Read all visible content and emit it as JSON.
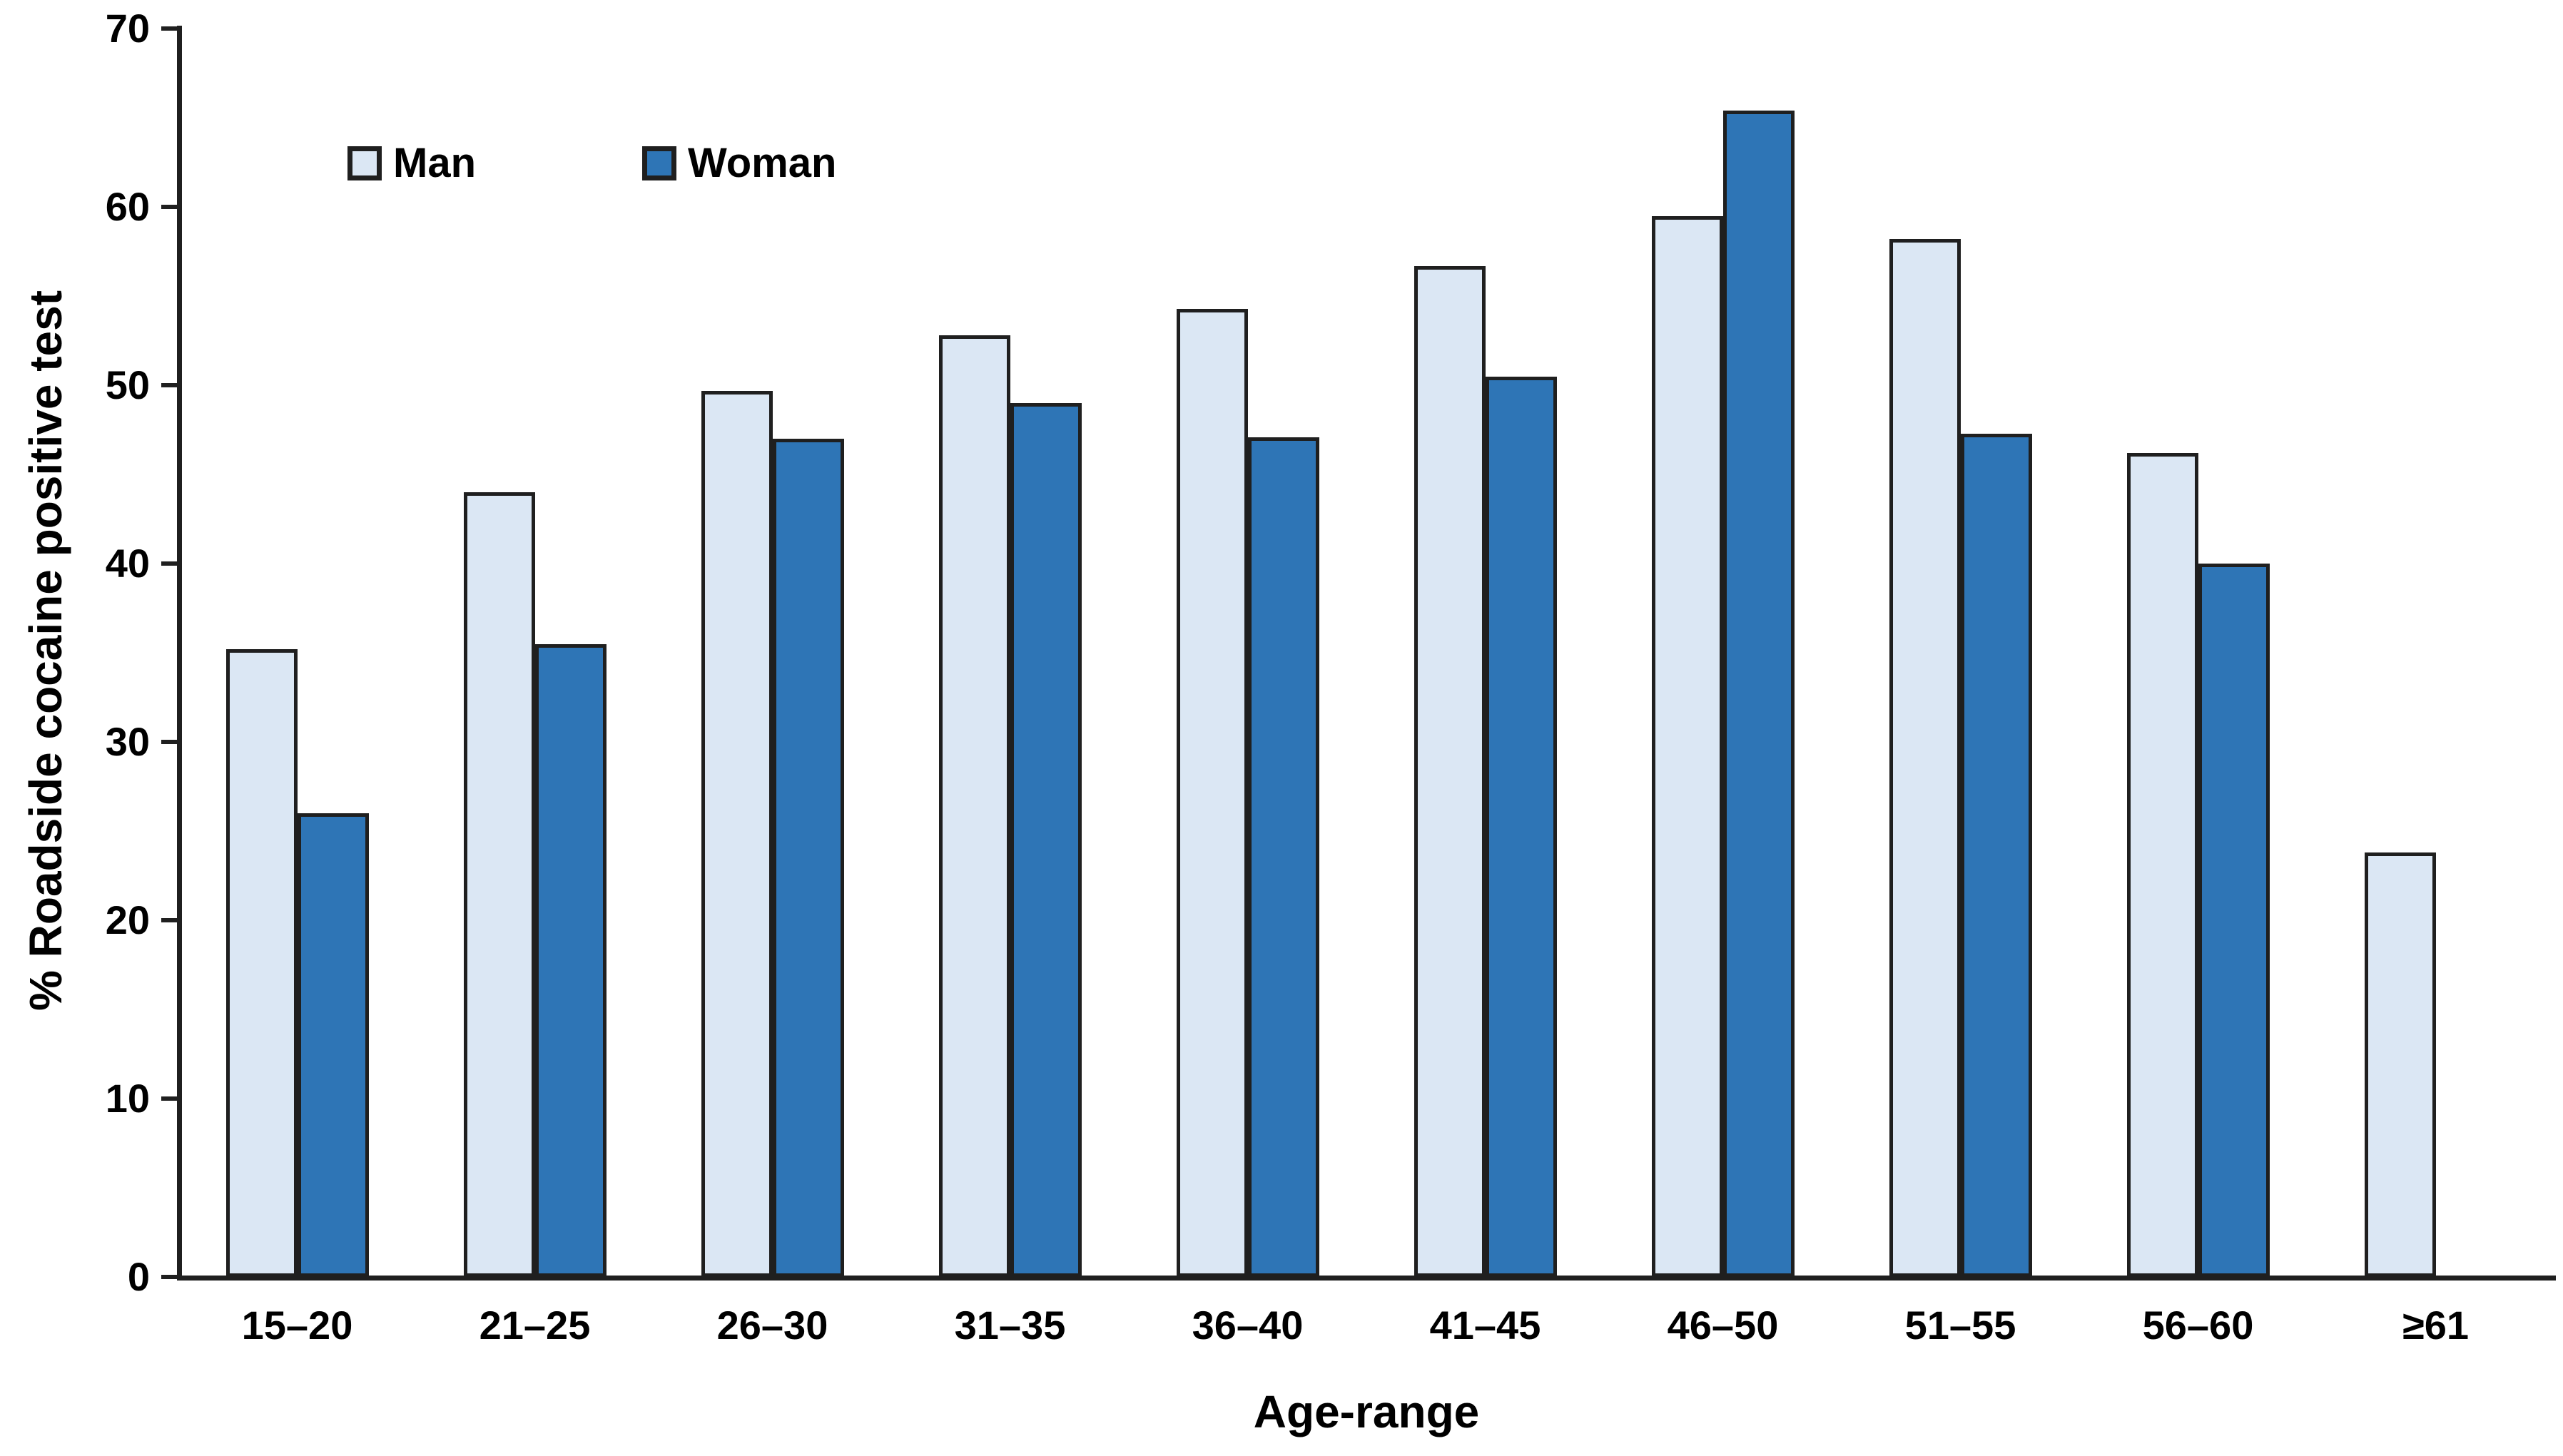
{
  "chart_data": {
    "type": "bar",
    "title": "",
    "xlabel": "Age-range",
    "ylabel": "% Roadside cocaine positive test",
    "categories": [
      "15–20",
      "21–25",
      "26–30",
      "31–35",
      "36–40",
      "41–45",
      "46–50",
      "51–55",
      "56–60",
      "≥61"
    ],
    "series": [
      {
        "name": "Man",
        "color": "#dbe7f4",
        "values": [
          35.2,
          44.0,
          49.7,
          52.8,
          54.3,
          56.7,
          59.5,
          58.2,
          46.2,
          23.8
        ]
      },
      {
        "name": "Woman",
        "color": "#2e75b6",
        "values": [
          26.0,
          35.5,
          47.0,
          49.0,
          47.1,
          50.5,
          65.4,
          47.3,
          40.0,
          null
        ]
      }
    ],
    "ylim": [
      0,
      70
    ],
    "ytick_step": 10,
    "grid": false,
    "legend_position": "top-left-inside",
    "bar_border_color": "#1f1f1f",
    "axis_color": "#1f1f1f"
  }
}
